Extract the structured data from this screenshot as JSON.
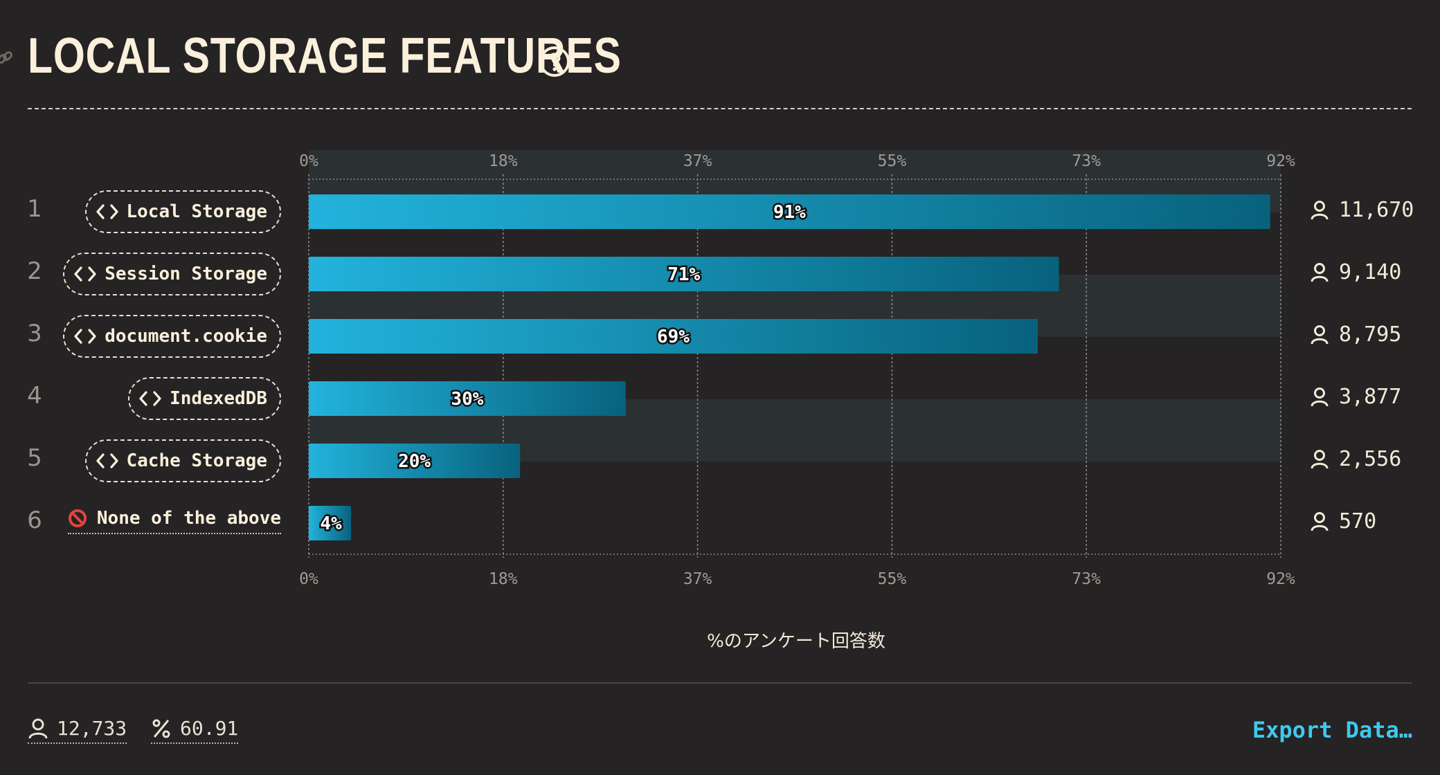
{
  "header": {
    "title": "LOCAL STORAGE FEATURES"
  },
  "chart_data": {
    "type": "bar",
    "orientation": "horizontal",
    "categories": [
      "Local Storage",
      "Session Storage",
      "document.cookie",
      "IndexedDB",
      "Cache Storage",
      "None of the above"
    ],
    "values": [
      91,
      71,
      69,
      30,
      20,
      4
    ],
    "value_labels": [
      "91%",
      "71%",
      "69%",
      "30%",
      "20%",
      "4%"
    ],
    "counts": [
      "11,670",
      "9,140",
      "8,795",
      "3,877",
      "2,556",
      "570"
    ],
    "ranks": [
      "1",
      "2",
      "3",
      "4",
      "5",
      "6"
    ],
    "xticks": [
      "0%",
      "18%",
      "37%",
      "55%",
      "73%",
      "92%"
    ],
    "xlim": [
      0,
      92
    ],
    "xlabel": "%のアンケート回答数",
    "colors": {
      "bar_start": "#22b3dc",
      "bar_end": "#08627d",
      "band": "#2b3033"
    }
  },
  "footer": {
    "respondents": "12,733",
    "percent": "60.91",
    "export_label": "Export Data…"
  }
}
